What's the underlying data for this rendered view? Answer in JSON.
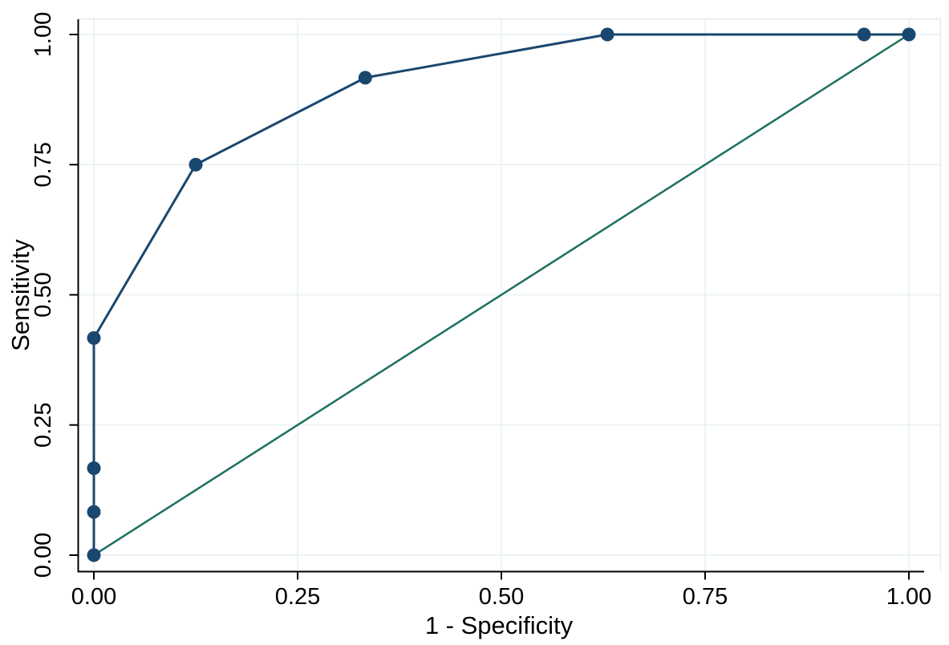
{
  "chart_data": {
    "type": "line",
    "title": "",
    "xlabel": "1 - Specificity",
    "ylabel": "Sensitivity",
    "xlim": [
      0,
      1
    ],
    "ylim": [
      0,
      1
    ],
    "grid": true,
    "legend_position": "none",
    "x_ticks": [
      {
        "value": 0.0,
        "label": "0.00"
      },
      {
        "value": 0.25,
        "label": "0.25"
      },
      {
        "value": 0.5,
        "label": "0.50"
      },
      {
        "value": 0.75,
        "label": "0.75"
      },
      {
        "value": 1.0,
        "label": "1.00"
      }
    ],
    "y_ticks": [
      {
        "value": 0.0,
        "label": "0.00"
      },
      {
        "value": 0.25,
        "label": "0.25"
      },
      {
        "value": 0.5,
        "label": "0.50"
      },
      {
        "value": 0.75,
        "label": "0.75"
      },
      {
        "value": 1.0,
        "label": "1.00"
      }
    ],
    "series": [
      {
        "name": "roc-curve",
        "style": "line-with-markers",
        "marker": "filled-circle",
        "color": "#1a476f",
        "points": [
          [
            0,
            0
          ],
          [
            0,
            0.083
          ],
          [
            0,
            0.167
          ],
          [
            0,
            0.417
          ],
          [
            0.125,
            0.75
          ],
          [
            0.333,
            0.917
          ],
          [
            0.63,
            1.0
          ],
          [
            0.945,
            1.0
          ],
          [
            1.0,
            1.0
          ]
        ]
      },
      {
        "name": "reference-diagonal",
        "style": "line",
        "marker": "none",
        "color": "#1d7061",
        "points": [
          [
            0,
            0
          ],
          [
            1,
            1
          ]
        ]
      }
    ],
    "colors": {
      "background": "#ffffff",
      "grid": "#e8f1f2",
      "plot_border": "#e2ebee",
      "axis": "#000000",
      "text": "#000000"
    }
  }
}
